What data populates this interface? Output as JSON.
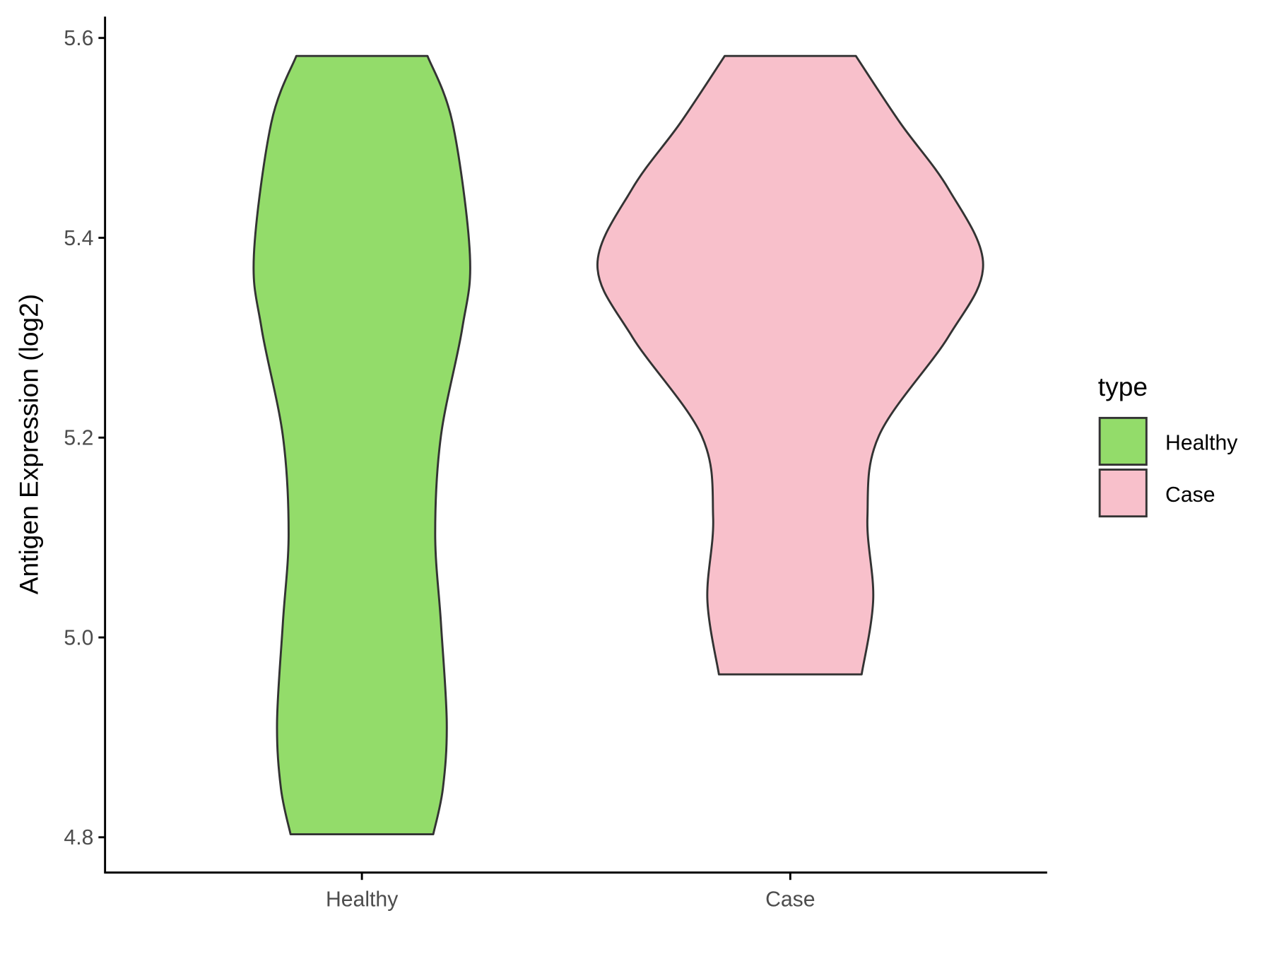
{
  "chart_data": {
    "type": "violin",
    "title": "",
    "xlabel": "",
    "ylabel": "Antigen Expression (log2)",
    "ylim": [
      4.765,
      5.62
    ],
    "yticks": [
      4.8,
      5.0,
      5.2,
      5.4,
      5.6
    ],
    "ytick_labels": [
      "4.8",
      "5.0",
      "5.2",
      "5.4",
      "5.6"
    ],
    "categories": [
      "Healthy",
      "Case"
    ],
    "grid": false,
    "legend": {
      "title": "type",
      "placement": "right",
      "entries": [
        "Healthy",
        "Case"
      ]
    },
    "series": [
      {
        "name": "Healthy",
        "color": "#93DC6A",
        "min": 4.803,
        "max": 5.582,
        "profile": [
          [
            5.582,
            0.34
          ],
          [
            5.515,
            0.47
          ],
          [
            5.383,
            0.56
          ],
          [
            5.309,
            0.52
          ],
          [
            5.202,
            0.41
          ],
          [
            5.104,
            0.38
          ],
          [
            5.014,
            0.41
          ],
          [
            4.915,
            0.44
          ],
          [
            4.849,
            0.42
          ],
          [
            4.803,
            0.37
          ]
        ]
      },
      {
        "name": "Case",
        "color": "#F8C0CB",
        "min": 4.963,
        "max": 5.582,
        "profile": [
          [
            5.582,
            0.34
          ],
          [
            5.515,
            0.57
          ],
          [
            5.449,
            0.82
          ],
          [
            5.373,
            1.0
          ],
          [
            5.301,
            0.82
          ],
          [
            5.202,
            0.46
          ],
          [
            5.12,
            0.4
          ],
          [
            5.038,
            0.43
          ],
          [
            4.963,
            0.37
          ]
        ]
      }
    ],
    "outline_color": "#333333"
  }
}
